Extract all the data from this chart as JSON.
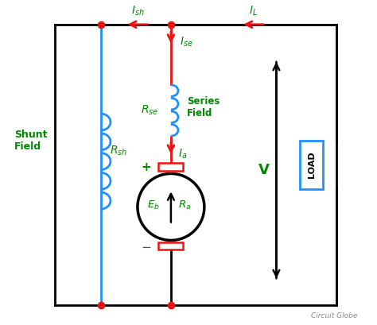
{
  "bg_color": "#ffffff",
  "wire_color": "#000000",
  "red_color": "#ee1111",
  "blue_color": "#1e90ff",
  "green_color": "#008800",
  "fig_width": 4.74,
  "fig_height": 4.09,
  "dpi": 100,
  "watermark": "Circuit Globe",
  "xlim": [
    0,
    10
  ],
  "ylim": [
    0,
    9
  ]
}
